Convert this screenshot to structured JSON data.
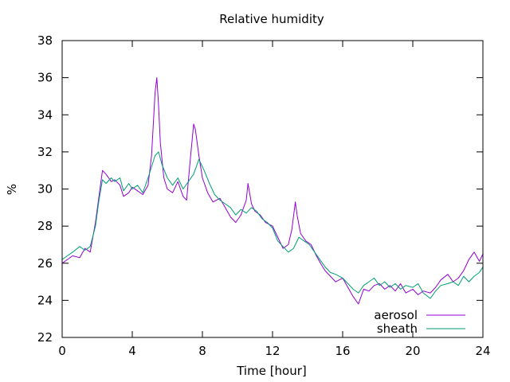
{
  "chart_data": {
    "type": "line",
    "title": "Relative humidity",
    "xlabel": "Time [hour]",
    "ylabel": "%",
    "xlim": [
      0,
      24
    ],
    "ylim": [
      22,
      38
    ],
    "xticks": [
      0,
      4,
      8,
      12,
      16,
      20,
      24
    ],
    "yticks": [
      22,
      24,
      26,
      28,
      30,
      32,
      34,
      36,
      38
    ],
    "grid": false,
    "legend_position": "bottom-right",
    "series": [
      {
        "name": "aerosol",
        "color": "#9400d3",
        "x": [
          0.0,
          0.3,
          0.6,
          1.0,
          1.3,
          1.6,
          1.9,
          2.1,
          2.3,
          2.5,
          2.8,
          3.0,
          3.3,
          3.5,
          3.8,
          4.0,
          4.3,
          4.6,
          4.9,
          5.1,
          5.3,
          5.4,
          5.5,
          5.6,
          5.8,
          6.0,
          6.3,
          6.6,
          6.9,
          7.1,
          7.3,
          7.5,
          7.6,
          7.8,
          8.0,
          8.3,
          8.6,
          9.0,
          9.3,
          9.6,
          9.9,
          10.2,
          10.5,
          10.6,
          10.8,
          11.0,
          11.3,
          11.6,
          12.0,
          12.3,
          12.6,
          12.9,
          13.1,
          13.3,
          13.4,
          13.6,
          13.9,
          14.2,
          14.5,
          14.8,
          15.0,
          15.3,
          15.6,
          16.0,
          16.3,
          16.6,
          16.9,
          17.2,
          17.5,
          17.8,
          18.1,
          18.4,
          18.7,
          19.0,
          19.3,
          19.6,
          20.0,
          20.3,
          20.6,
          21.0,
          21.3,
          21.6,
          22.0,
          22.3,
          22.6,
          22.9,
          23.2,
          23.5,
          23.8,
          24.0
        ],
        "y": [
          26.0,
          26.2,
          26.4,
          26.3,
          26.8,
          26.6,
          28.2,
          29.6,
          31.0,
          30.8,
          30.4,
          30.5,
          30.2,
          29.6,
          29.8,
          30.1,
          29.9,
          29.7,
          30.2,
          31.8,
          35.2,
          36.0,
          34.5,
          32.5,
          30.6,
          30.0,
          29.8,
          30.4,
          29.6,
          29.4,
          31.5,
          33.5,
          33.2,
          31.8,
          30.6,
          29.8,
          29.3,
          29.5,
          29.0,
          28.5,
          28.2,
          28.6,
          29.4,
          30.3,
          29.2,
          28.8,
          28.6,
          28.2,
          28.0,
          27.4,
          26.8,
          27.0,
          27.8,
          29.3,
          28.6,
          27.6,
          27.2,
          27.0,
          26.4,
          25.9,
          25.6,
          25.3,
          25.0,
          25.2,
          24.7,
          24.2,
          23.8,
          24.6,
          24.5,
          24.8,
          24.9,
          24.6,
          24.8,
          24.5,
          24.9,
          24.4,
          24.6,
          24.3,
          24.5,
          24.4,
          24.7,
          25.1,
          25.4,
          25.0,
          25.2,
          25.6,
          26.2,
          26.6,
          26.1,
          26.5
        ]
      },
      {
        "name": "sheath",
        "color": "#009e73",
        "x": [
          0.0,
          0.3,
          0.6,
          1.0,
          1.3,
          1.6,
          1.9,
          2.1,
          2.3,
          2.5,
          2.8,
          3.0,
          3.3,
          3.5,
          3.8,
          4.0,
          4.3,
          4.6,
          4.9,
          5.1,
          5.3,
          5.5,
          5.7,
          6.0,
          6.3,
          6.6,
          6.9,
          7.2,
          7.5,
          7.8,
          8.1,
          8.4,
          8.7,
          9.0,
          9.3,
          9.6,
          9.9,
          10.2,
          10.5,
          10.8,
          11.1,
          11.4,
          11.7,
          12.0,
          12.3,
          12.6,
          12.9,
          13.2,
          13.5,
          13.8,
          14.1,
          14.4,
          14.7,
          15.0,
          15.3,
          15.6,
          16.0,
          16.3,
          16.6,
          16.9,
          17.2,
          17.5,
          17.8,
          18.1,
          18.4,
          18.7,
          19.0,
          19.3,
          19.6,
          20.0,
          20.3,
          20.6,
          21.0,
          21.3,
          21.6,
          22.0,
          22.3,
          22.6,
          22.9,
          23.2,
          23.5,
          23.8,
          24.0
        ],
        "y": [
          26.2,
          26.4,
          26.6,
          26.9,
          26.7,
          26.9,
          28.0,
          29.4,
          30.5,
          30.3,
          30.6,
          30.4,
          30.6,
          29.9,
          30.3,
          30.0,
          30.2,
          29.8,
          30.6,
          31.2,
          31.8,
          32.0,
          31.3,
          30.6,
          30.2,
          30.6,
          30.0,
          30.4,
          30.8,
          31.6,
          31.0,
          30.3,
          29.7,
          29.4,
          29.2,
          29.0,
          28.6,
          28.9,
          28.7,
          29.0,
          28.8,
          28.4,
          28.2,
          27.9,
          27.2,
          26.9,
          26.6,
          26.8,
          27.4,
          27.2,
          27.0,
          26.6,
          26.2,
          25.8,
          25.5,
          25.4,
          25.2,
          24.9,
          24.6,
          24.4,
          24.8,
          25.0,
          25.2,
          24.8,
          25.0,
          24.7,
          24.9,
          24.6,
          24.8,
          24.7,
          24.9,
          24.4,
          24.1,
          24.5,
          24.8,
          24.9,
          25.0,
          24.8,
          25.3,
          25.0,
          25.3,
          25.5,
          25.8
        ]
      }
    ]
  }
}
